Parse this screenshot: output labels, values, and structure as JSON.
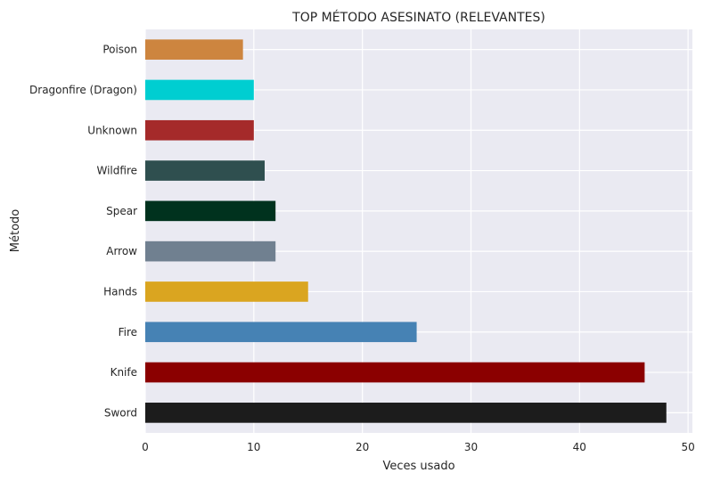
{
  "chart_data": {
    "type": "bar",
    "orientation": "horizontal",
    "title": "TOP MÉTODO ASESINATO (RELEVANTES)",
    "xlabel": "Veces usado",
    "ylabel": "Método",
    "categories": [
      "Sword",
      "Knife",
      "Fire",
      "Hands",
      "Arrow",
      "Spear",
      "Wildfire",
      "Unknown",
      "Dragonfire (Dragon)",
      "Poison"
    ],
    "values": [
      48,
      46,
      25,
      15,
      12,
      12,
      11,
      10,
      10,
      9
    ],
    "colors": [
      "#1c1c1c",
      "#8b0000",
      "#4682b4",
      "#daa520",
      "#708090",
      "#00321e",
      "#2f4f4f",
      "#a52a2a",
      "#00ced1",
      "#cd853f"
    ],
    "xlim": [
      0,
      50.4
    ],
    "xticks": [
      0,
      10,
      20,
      30,
      40,
      50
    ],
    "grid": true,
    "background": "#eaeaf2"
  }
}
